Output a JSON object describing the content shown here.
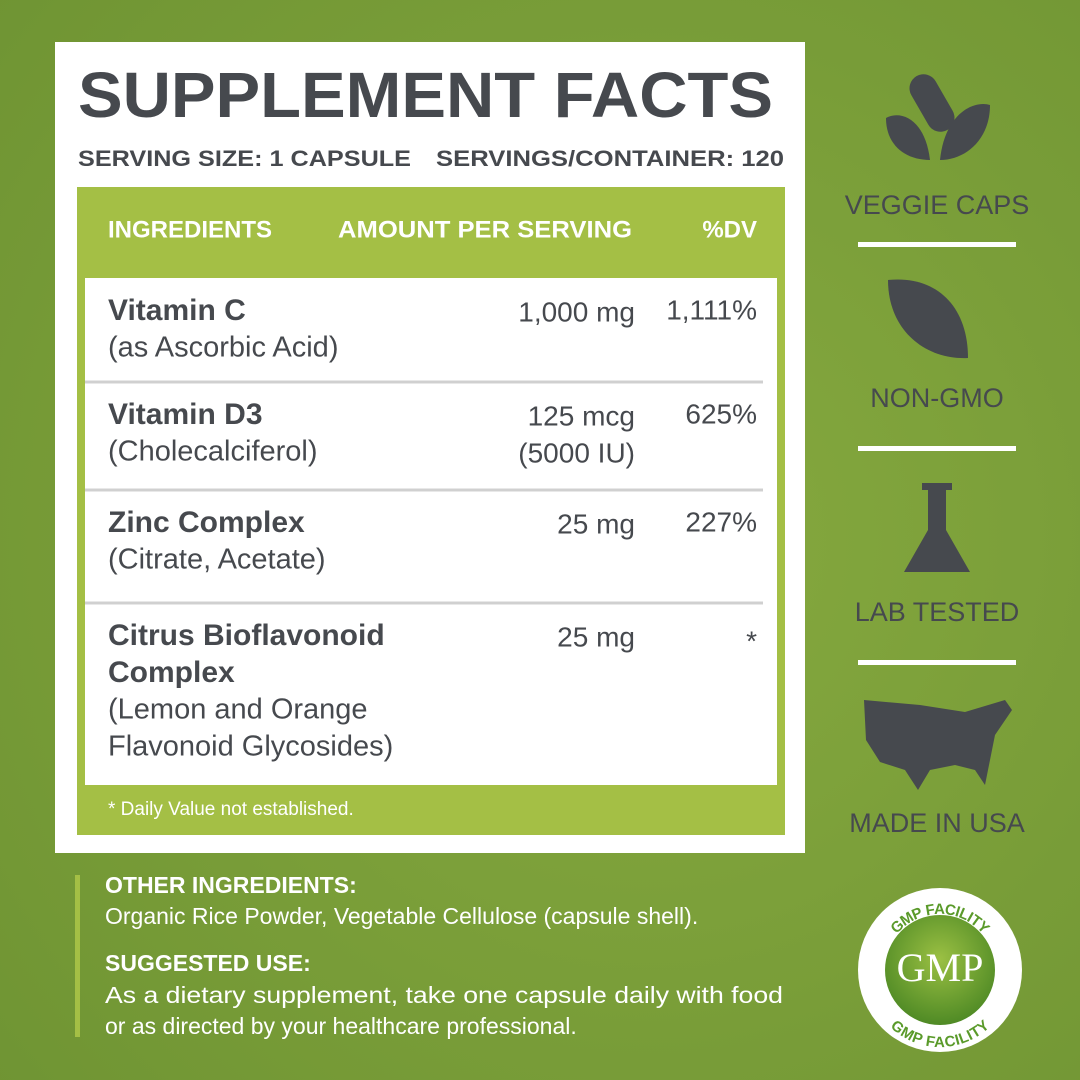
{
  "title": "SUPPLEMENT FACTS",
  "serving_size": "SERVING SIZE: 1 CAPSULE",
  "servings_per_container": "SERVINGS/CONTAINER: 120",
  "table": {
    "headers": [
      "INGREDIENTS",
      "AMOUNT PER SERVING",
      "%DV"
    ],
    "rows": [
      {
        "name": [
          "Vitamin C"
        ],
        "source": [
          "(as Ascorbic Acid)"
        ],
        "amount": [
          "1,000 mg"
        ],
        "dv": "1,111%"
      },
      {
        "name": [
          "Vitamin D3"
        ],
        "source": [
          "(Cholecalciferol)"
        ],
        "amount": [
          "125 mcg",
          "(5000 IU)"
        ],
        "dv": "625%"
      },
      {
        "name": [
          "Zinc Complex"
        ],
        "source": [
          "(Citrate, Acetate)"
        ],
        "amount": [
          "25 mg"
        ],
        "dv": "227%"
      },
      {
        "name": [
          "Citrus Bioflavonoid",
          "Complex"
        ],
        "source": [
          "(Lemon and Orange",
          "Flavonoid Glycosides)"
        ],
        "amount": [
          "25 mg"
        ],
        "dv": "*"
      }
    ],
    "footnote": "* Daily Value not established."
  },
  "other_ingredients": {
    "heading": "OTHER INGREDIENTS:",
    "lines": [
      "Organic Rice Powder, Vegetable Cellulose (capsule shell)."
    ]
  },
  "suggested_use": {
    "heading": "SUGGESTED USE:",
    "lines": [
      "As a dietary supplement, take one capsule daily with food",
      "or as directed by your healthcare professional."
    ]
  },
  "badges": [
    "VEGGIE CAPS",
    "NON-GMO",
    "LAB TESTED",
    "MADE IN USA"
  ],
  "seal": {
    "center": "GMP",
    "ring": "GMP FACILITY"
  }
}
